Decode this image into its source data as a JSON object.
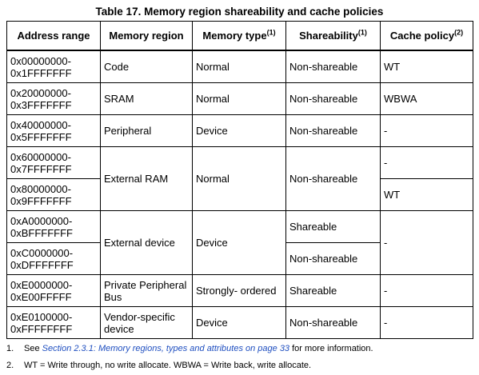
{
  "title": "Table 17. Memory region shareability and cache policies",
  "table": {
    "header": [
      {
        "text": "Address range"
      },
      {
        "text": "Memory region"
      },
      {
        "text": "Memory type",
        "note": "(1)"
      },
      {
        "text": "Shareability",
        "note": "(1)"
      },
      {
        "text": "Cache policy",
        "note": "(2)"
      }
    ],
    "rows": [
      {
        "address": [
          "0x00000000-",
          "0x1FFFFFFF"
        ],
        "region": "Code",
        "type": "Normal",
        "share": "Non-shareable",
        "cache": "WT"
      },
      {
        "address": [
          "0x20000000-",
          "0x3FFFFFFF"
        ],
        "region": "SRAM",
        "type": "Normal",
        "share": "Non-shareable",
        "cache": "WBWA"
      },
      {
        "address": [
          "0x40000000-",
          "0x5FFFFFFF"
        ],
        "region": "Peripheral",
        "type": "Device",
        "share": "Non-shareable",
        "cache": "-"
      },
      {
        "address": [
          "0x60000000-",
          "0x7FFFFFFF"
        ],
        "region": "External RAM",
        "type": "Normal",
        "share": "Non-shareable",
        "cache": "-"
      },
      {
        "address": [
          "0x80000000-",
          "0x9FFFFFFF"
        ],
        "cache": "WT"
      },
      {
        "address": [
          "0xA0000000-",
          "0xBFFFFFFF"
        ],
        "region": "External device",
        "type": "Device",
        "share": "Shareable",
        "cache": "-"
      },
      {
        "address": [
          "0xC0000000-",
          "0xDFFFFFFF"
        ],
        "share": "Non-shareable"
      },
      {
        "address": [
          "0xE0000000-",
          "0xE00FFFFF"
        ],
        "region": "Private Peripheral Bus",
        "type": "Strongly- ordered",
        "share": "Shareable",
        "cache": "-"
      },
      {
        "address": [
          "0xE0100000-",
          "0xFFFFFFFF"
        ],
        "region": "Vendor-specific device",
        "type": "Device",
        "share": "Non-shareable",
        "cache": "-"
      }
    ]
  },
  "footnotes": [
    {
      "number": "1.",
      "before": "See ",
      "link": "Section 2.3.1: Memory regions, types and attributes on page 33",
      "after": " for more information."
    },
    {
      "number": "2.",
      "text": "WT = Write through, no write allocate. WBWA = Write back, write allocate."
    }
  ]
}
